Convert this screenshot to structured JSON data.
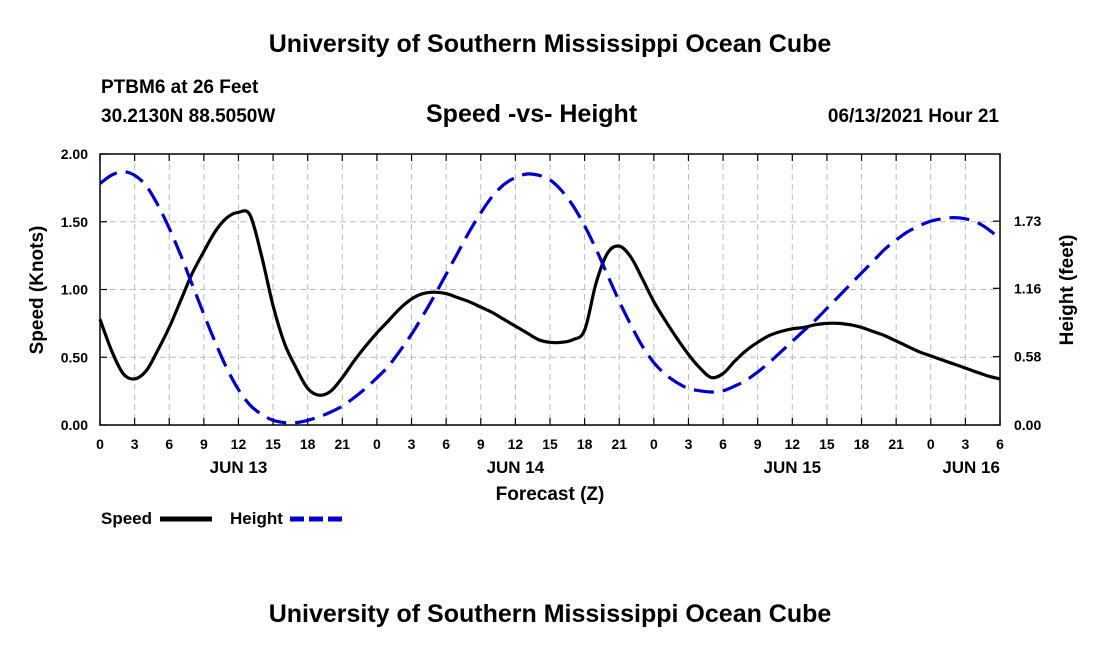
{
  "header": {
    "org_title": "University of Southern Mississippi Ocean Cube",
    "station": "PTBM6 at 26 Feet",
    "coords": "30.2130N  88.5050W",
    "chart_title": "Speed -vs- Height",
    "datetime": "06/13/2021 Hour 21"
  },
  "footer": {
    "org_title": "University of Southern Mississippi Ocean Cube"
  },
  "chart_data": {
    "type": "line",
    "title": "Speed -vs- Height",
    "xlabel": "Forecast (Z)",
    "ylabel": "Speed (Knots)",
    "y2label": "Height (feet)",
    "xlim": [
      0,
      78
    ],
    "ylim": [
      0,
      2.0
    ],
    "y2lim": [
      0,
      2.3
    ],
    "grid": true,
    "legend_position": "bottom-left",
    "x_ticks": [
      0,
      3,
      6,
      9,
      12,
      15,
      18,
      21,
      24,
      27,
      30,
      33,
      36,
      39,
      42,
      45,
      48,
      51,
      54,
      57,
      60,
      63,
      66,
      69,
      72,
      75,
      78
    ],
    "x_tick_labels": [
      "0",
      "3",
      "6",
      "9",
      "12",
      "15",
      "18",
      "21",
      "0",
      "3",
      "6",
      "9",
      "12",
      "15",
      "18",
      "21",
      "0",
      "3",
      "6",
      "9",
      "12",
      "15",
      "18",
      "21",
      "0",
      "3",
      "6"
    ],
    "date_labels": [
      {
        "x": 12,
        "label": "JUN 13"
      },
      {
        "x": 36,
        "label": "JUN 14"
      },
      {
        "x": 60,
        "label": "JUN 15"
      },
      {
        "x": 75.5,
        "label": "JUN 16"
      }
    ],
    "y_ticks": [
      0,
      0.5,
      1.0,
      1.5,
      2.0
    ],
    "y_tick_labels": [
      "0.00",
      "0.50",
      "1.00",
      "1.50",
      "2.00"
    ],
    "y2_ticks": [
      0,
      0.58,
      1.16,
      1.73
    ],
    "y2_tick_labels": [
      "0.00",
      "0.58",
      "1.16",
      "1.73"
    ],
    "series": [
      {
        "name": "Speed",
        "axis": "left",
        "color": "#000000",
        "dash": "solid",
        "x": [
          0,
          1,
          2,
          3,
          4,
          5,
          6,
          7,
          8,
          9,
          10,
          11,
          12,
          13,
          14,
          15,
          16,
          17,
          18,
          19,
          20,
          21,
          22,
          23,
          24,
          25,
          26,
          27,
          28,
          29,
          30,
          31,
          32,
          33,
          34,
          35,
          36,
          37,
          38,
          39,
          40,
          41,
          42,
          43,
          44,
          45,
          46,
          47,
          48,
          49,
          50,
          51,
          52,
          53,
          54,
          55,
          56,
          57,
          58,
          59,
          60,
          61,
          62,
          63,
          64,
          65,
          66,
          67,
          68,
          69,
          70,
          71,
          72,
          73,
          74,
          75,
          76,
          77,
          78
        ],
        "values": [
          0.78,
          0.55,
          0.38,
          0.34,
          0.4,
          0.55,
          0.72,
          0.92,
          1.12,
          1.28,
          1.43,
          1.53,
          1.57,
          1.55,
          1.25,
          0.88,
          0.6,
          0.42,
          0.27,
          0.22,
          0.25,
          0.35,
          0.47,
          0.58,
          0.68,
          0.77,
          0.86,
          0.93,
          0.97,
          0.98,
          0.97,
          0.94,
          0.91,
          0.87,
          0.83,
          0.78,
          0.73,
          0.68,
          0.63,
          0.61,
          0.61,
          0.63,
          0.7,
          1.05,
          1.27,
          1.32,
          1.24,
          1.08,
          0.91,
          0.77,
          0.64,
          0.52,
          0.42,
          0.35,
          0.38,
          0.47,
          0.55,
          0.61,
          0.66,
          0.69,
          0.71,
          0.72,
          0.74,
          0.75,
          0.75,
          0.74,
          0.72,
          0.69,
          0.66,
          0.62,
          0.58,
          0.54,
          0.51,
          0.48,
          0.45,
          0.42,
          0.39,
          0.36,
          0.34
        ]
      },
      {
        "name": "Height",
        "axis": "right",
        "color": "#0000cc",
        "dash": "dashed",
        "x": [
          0,
          1,
          2,
          3,
          4,
          5,
          6,
          7,
          8,
          9,
          10,
          11,
          12,
          13,
          14,
          15,
          16,
          17,
          18,
          19,
          20,
          21,
          22,
          23,
          24,
          25,
          26,
          27,
          28,
          29,
          30,
          31,
          32,
          33,
          34,
          35,
          36,
          37,
          38,
          39,
          40,
          41,
          42,
          43,
          44,
          45,
          46,
          47,
          48,
          49,
          50,
          51,
          52,
          53,
          54,
          55,
          56,
          57,
          58,
          59,
          60,
          61,
          62,
          63,
          64,
          65,
          66,
          67,
          68,
          69,
          70,
          71,
          72,
          73,
          74,
          75,
          76,
          77,
          78
        ],
        "values": [
          2.05,
          2.12,
          2.15,
          2.12,
          2.03,
          1.87,
          1.67,
          1.44,
          1.19,
          0.94,
          0.7,
          0.48,
          0.3,
          0.17,
          0.09,
          0.04,
          0.02,
          0.02,
          0.04,
          0.07,
          0.11,
          0.16,
          0.23,
          0.31,
          0.4,
          0.5,
          0.63,
          0.77,
          0.93,
          1.1,
          1.28,
          1.46,
          1.64,
          1.8,
          1.94,
          2.04,
          2.1,
          2.13,
          2.12,
          2.08,
          1.99,
          1.86,
          1.69,
          1.49,
          1.27,
          1.05,
          0.85,
          0.67,
          0.53,
          0.43,
          0.36,
          0.31,
          0.29,
          0.28,
          0.29,
          0.33,
          0.38,
          0.45,
          0.53,
          0.62,
          0.71,
          0.8,
          0.89,
          0.99,
          1.09,
          1.19,
          1.29,
          1.39,
          1.49,
          1.57,
          1.64,
          1.69,
          1.73,
          1.75,
          1.76,
          1.75,
          1.72,
          1.66,
          1.58
        ]
      }
    ]
  }
}
